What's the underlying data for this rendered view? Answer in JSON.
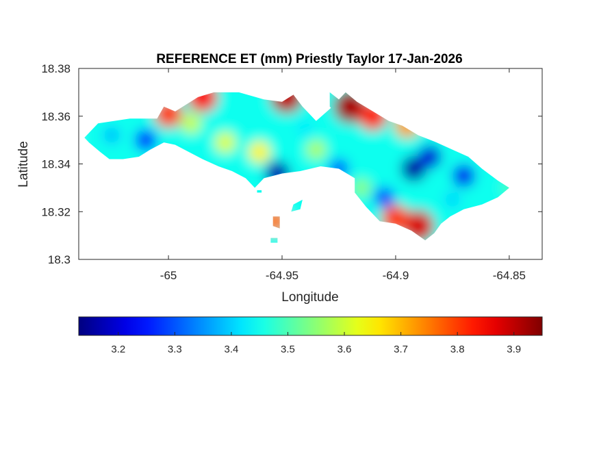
{
  "chart_data": {
    "type": "heatmap",
    "title": "REFERENCE ET (mm) Priestly Taylor 17-Jan-2026",
    "xlabel": "Longitude",
    "ylabel": "Latitude",
    "xlim": [
      -65.0395,
      -64.8355
    ],
    "ylim": [
      18.3,
      18.38
    ],
    "x_ticks": [
      -65,
      -64.95,
      -64.9,
      -64.85
    ],
    "x_tick_labels": [
      "-65",
      "-64.95",
      "-64.9",
      "-64.85"
    ],
    "y_ticks": [
      18.3,
      18.32,
      18.34,
      18.36,
      18.38
    ],
    "y_tick_labels": [
      "18.3",
      "18.32",
      "18.34",
      "18.36",
      "18.38"
    ],
    "colormap": "jet",
    "clim": [
      3.13,
      3.95
    ],
    "colorbar": {
      "orientation": "horizontal",
      "location": "below",
      "ticks": [
        3.2,
        3.3,
        3.4,
        3.5,
        3.6,
        3.7,
        3.8,
        3.9
      ],
      "tick_labels": [
        "3.2",
        "3.3",
        "3.4",
        "3.5",
        "3.6",
        "3.7",
        "3.8",
        "3.9"
      ]
    },
    "grid": false,
    "outline_lonlat": [
      [
        -65.037,
        18.351
      ],
      [
        -65.031,
        18.357
      ],
      [
        -65.017,
        18.359
      ],
      [
        -65.005,
        18.359
      ],
      [
        -65.002,
        18.364
      ],
      [
        -64.997,
        18.362
      ],
      [
        -64.987,
        18.368
      ],
      [
        -64.98,
        18.37
      ],
      [
        -64.969,
        18.37
      ],
      [
        -64.958,
        18.367
      ],
      [
        -64.95,
        18.366
      ],
      [
        -64.945,
        18.369
      ],
      [
        -64.941,
        18.364
      ],
      [
        -64.935,
        18.358
      ],
      [
        -64.929,
        18.363
      ],
      [
        -64.922,
        18.37
      ],
      [
        -64.917,
        18.366
      ],
      [
        -64.91,
        18.362
      ],
      [
        -64.903,
        18.358
      ],
      [
        -64.897,
        18.356
      ],
      [
        -64.89,
        18.352
      ],
      [
        -64.882,
        18.349
      ],
      [
        -64.875,
        18.346
      ],
      [
        -64.868,
        18.343
      ],
      [
        -64.862,
        18.338
      ],
      [
        -64.855,
        18.333
      ],
      [
        -64.85,
        18.33
      ],
      [
        -64.855,
        18.326
      ],
      [
        -64.862,
        18.323
      ],
      [
        -64.87,
        18.321
      ],
      [
        -64.876,
        18.318
      ],
      [
        -64.88,
        18.315
      ],
      [
        -64.883,
        18.311
      ],
      [
        -64.887,
        18.308
      ],
      [
        -64.893,
        18.312
      ],
      [
        -64.9,
        18.315
      ],
      [
        -64.907,
        18.316
      ],
      [
        -64.913,
        18.322
      ],
      [
        -64.918,
        18.328
      ],
      [
        -64.918,
        18.334
      ],
      [
        -64.925,
        18.338
      ],
      [
        -64.933,
        18.339
      ],
      [
        -64.942,
        18.337
      ],
      [
        -64.95,
        18.336
      ],
      [
        -64.958,
        18.334
      ],
      [
        -64.962,
        18.33
      ],
      [
        -64.966,
        18.334
      ],
      [
        -64.972,
        18.337
      ],
      [
        -64.978,
        18.339
      ],
      [
        -64.985,
        18.342
      ],
      [
        -64.991,
        18.345
      ],
      [
        -64.997,
        18.348
      ],
      [
        -65.002,
        18.349
      ],
      [
        -65.008,
        18.346
      ],
      [
        -65.013,
        18.343
      ],
      [
        -65.02,
        18.342
      ],
      [
        -65.026,
        18.342
      ],
      [
        -65.03,
        18.345
      ],
      [
        -65.035,
        18.349
      ]
    ],
    "islets_lonlat": [
      [
        [
          -64.929,
          18.37
        ],
        [
          -64.925,
          18.367
        ],
        [
          -64.921,
          18.362
        ],
        [
          -64.925,
          18.36
        ],
        [
          -64.929,
          18.364
        ]
      ],
      [
        [
          -64.945,
          18.323
        ],
        [
          -64.941,
          18.325
        ],
        [
          -64.942,
          18.321
        ],
        [
          -64.946,
          18.32
        ]
      ],
      [
        [
          -64.954,
          18.318
        ],
        [
          -64.951,
          18.318
        ],
        [
          -64.951,
          18.313
        ],
        [
          -64.954,
          18.314
        ]
      ],
      [
        [
          -64.955,
          18.309
        ],
        [
          -64.952,
          18.309
        ],
        [
          -64.952,
          18.307
        ],
        [
          -64.955,
          18.307
        ]
      ],
      [
        [
          -64.961,
          18.329
        ],
        [
          -64.959,
          18.329
        ],
        [
          -64.959,
          18.328
        ],
        [
          -64.961,
          18.328
        ]
      ]
    ],
    "hotspots": [
      {
        "lon": -64.948,
        "lat": 18.368,
        "value": 3.9
      },
      {
        "lon": -64.985,
        "lat": 18.368,
        "value": 3.85
      },
      {
        "lon": -65.0,
        "lat": 18.361,
        "value": 3.8
      },
      {
        "lon": -64.92,
        "lat": 18.364,
        "value": 3.92
      },
      {
        "lon": -64.91,
        "lat": 18.36,
        "value": 3.82
      },
      {
        "lon": -64.895,
        "lat": 18.356,
        "value": 3.72
      },
      {
        "lon": -64.89,
        "lat": 18.314,
        "value": 3.88
      },
      {
        "lon": -64.9,
        "lat": 18.317,
        "value": 3.8
      },
      {
        "lon": -64.96,
        "lat": 18.345,
        "value": 3.65
      },
      {
        "lon": -64.975,
        "lat": 18.349,
        "value": 3.62
      },
      {
        "lon": -64.935,
        "lat": 18.346,
        "value": 3.58
      },
      {
        "lon": -64.925,
        "lat": 18.338,
        "value": 3.3
      },
      {
        "lon": -64.952,
        "lat": 18.336,
        "value": 3.17
      },
      {
        "lon": -64.892,
        "lat": 18.338,
        "value": 3.16
      },
      {
        "lon": -64.885,
        "lat": 18.343,
        "value": 3.2
      },
      {
        "lon": -64.87,
        "lat": 18.335,
        "value": 3.22
      },
      {
        "lon": -64.01,
        "lat": 18.35,
        "value": 3.25
      },
      {
        "lon": -65.01,
        "lat": 18.35,
        "value": 3.25
      },
      {
        "lon": -65.025,
        "lat": 18.352,
        "value": 3.38
      },
      {
        "lon": -64.905,
        "lat": 18.326,
        "value": 3.28
      },
      {
        "lon": -64.875,
        "lat": 18.325,
        "value": 3.4
      },
      {
        "lon": -64.85,
        "lat": 18.33,
        "value": 3.5
      },
      {
        "lon": -64.915,
        "lat": 18.33,
        "value": 3.55
      },
      {
        "lon": -64.99,
        "lat": 18.357,
        "value": 3.6
      },
      {
        "lon": -64.96,
        "lat": 18.358,
        "value": 3.45
      },
      {
        "lon": -64.94,
        "lat": 18.355,
        "value": 3.42
      },
      {
        "lon": -64.945,
        "lat": 18.322,
        "value": 3.45
      },
      {
        "lon": -64.953,
        "lat": 18.316,
        "value": 3.75
      }
    ]
  }
}
